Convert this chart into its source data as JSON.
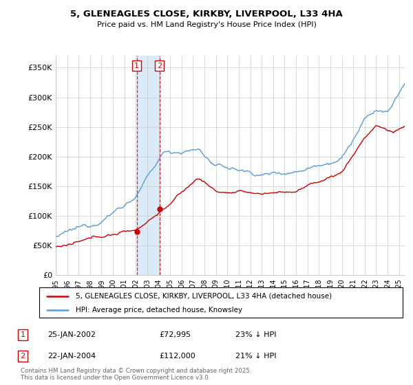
{
  "title_line1": "5, GLENEAGLES CLOSE, KIRKBY, LIVERPOOL, L33 4HA",
  "title_line2": "Price paid vs. HM Land Registry's House Price Index (HPI)",
  "ylim": [
    0,
    370000
  ],
  "yticks": [
    0,
    50000,
    100000,
    150000,
    200000,
    250000,
    300000,
    350000
  ],
  "ytick_labels": [
    "£0",
    "£50K",
    "£100K",
    "£150K",
    "£200K",
    "£250K",
    "£300K",
    "£350K"
  ],
  "xlim_start": 1995.0,
  "xlim_end": 2025.5,
  "transaction1_date": 2002.07,
  "transaction1_price": 72995,
  "transaction1_label": "1",
  "transaction2_date": 2004.07,
  "transaction2_price": 112000,
  "transaction2_label": "2",
  "hpi_color": "#5b9bd5",
  "price_color": "#cc0000",
  "shaded_color": "#daeaf7",
  "grid_color": "#cccccc",
  "legend_label_price": "5, GLENEAGLES CLOSE, KIRKBY, LIVERPOOL, L33 4HA (detached house)",
  "legend_label_hpi": "HPI: Average price, detached house, Knowsley",
  "annotation1_date": "25-JAN-2002",
  "annotation1_price": "£72,995",
  "annotation1_hpi": "23% ↓ HPI",
  "annotation2_date": "22-JAN-2004",
  "annotation2_price": "£112,000",
  "annotation2_hpi": "21% ↓ HPI",
  "footer": "Contains HM Land Registry data © Crown copyright and database right 2025.\nThis data is licensed under the Open Government Licence v3.0."
}
